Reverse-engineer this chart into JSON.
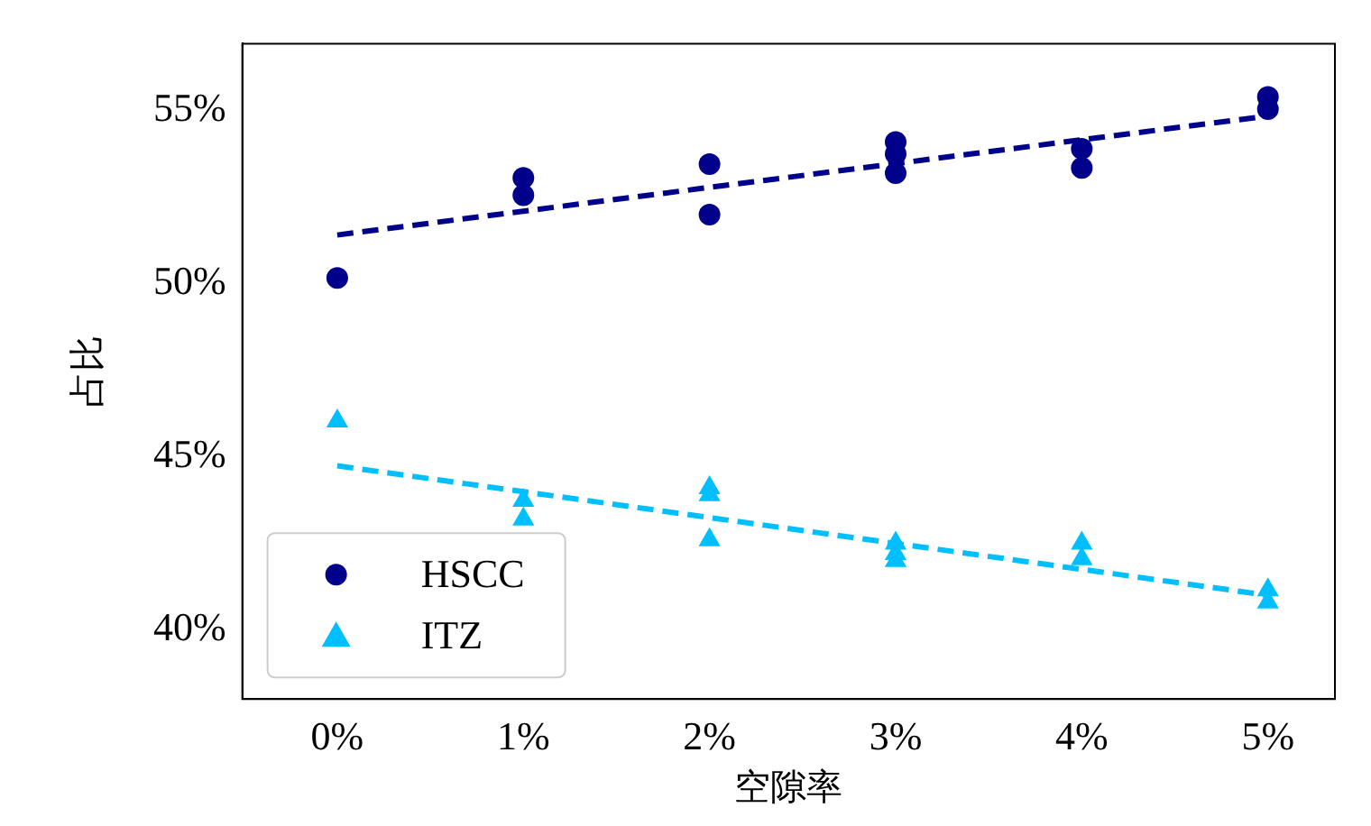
{
  "chart_data": {
    "type": "scatter",
    "xlabel": "空隙率",
    "ylabel": "占比",
    "xlim": [
      -0.51,
      5.36
    ],
    "ylim": [
      38.0,
      56.94
    ],
    "xticks": [
      {
        "value": 0,
        "label": "0%"
      },
      {
        "value": 1,
        "label": "1%"
      },
      {
        "value": 2,
        "label": "2%"
      },
      {
        "value": 3,
        "label": "3%"
      },
      {
        "value": 4,
        "label": "4%"
      },
      {
        "value": 5,
        "label": "5%"
      }
    ],
    "yticks": [
      {
        "value": 40,
        "label": "40%"
      },
      {
        "value": 45,
        "label": "45%"
      },
      {
        "value": 50,
        "label": "50%"
      },
      {
        "value": 55,
        "label": "55%"
      }
    ],
    "grid": false,
    "legend": "bottom left",
    "series": [
      {
        "name": "HSCC",
        "type": "scatter",
        "marker": "circle",
        "color": "#00008b",
        "x": [
          0,
          1,
          1,
          2,
          2,
          3,
          3,
          3,
          4,
          4,
          5,
          5
        ],
        "values": [
          50.17,
          53.06,
          52.56,
          53.46,
          52.0,
          54.1,
          53.75,
          53.2,
          53.9,
          53.35,
          55.4,
          55.05
        ]
      },
      {
        "name": "ITZ",
        "type": "scatter",
        "marker": "triangle",
        "color": "#00bfff",
        "x": [
          0,
          1,
          1,
          2,
          2,
          2,
          3,
          3,
          3,
          4,
          4,
          5,
          5
        ],
        "values": [
          46.03,
          43.74,
          43.2,
          44.1,
          43.9,
          42.6,
          42.5,
          42.2,
          42.0,
          42.5,
          42.05,
          41.15,
          40.8
        ]
      },
      {
        "type": "line",
        "line_style": "dashed",
        "marker": "none",
        "color": "#00008b",
        "x": [
          0,
          5
        ],
        "values": [
          51.41,
          54.85
        ]
      },
      {
        "type": "line",
        "line_style": "dashed",
        "marker": "none",
        "color": "#00bfff",
        "x": [
          0,
          5
        ],
        "values": [
          44.74,
          41.0
        ]
      }
    ]
  }
}
